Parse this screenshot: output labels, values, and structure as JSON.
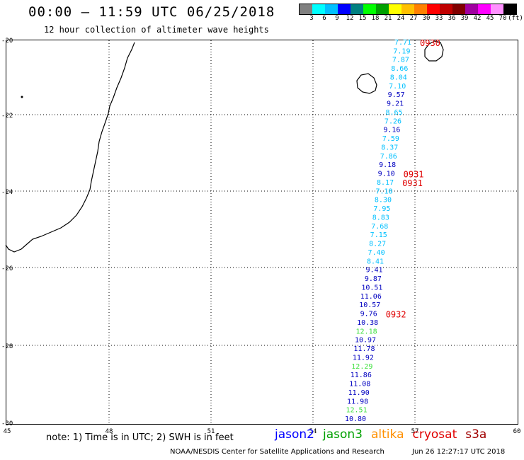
{
  "header": {
    "title": "00:00 — 11:59 UTC 06/25/2018",
    "subtitle": "12 hour collection of altimeter wave heights"
  },
  "legend": {
    "unit": "(ft)",
    "ticks": [
      "3",
      "6",
      "9",
      "12",
      "15",
      "18",
      "21",
      "24",
      "27",
      "30",
      "33",
      "36",
      "39",
      "42",
      "45",
      "70"
    ],
    "colors": [
      "#808080",
      "#00ffff",
      "#00c0ff",
      "#0000ff",
      "#008080",
      "#00ff00",
      "#00a000",
      "#ffff00",
      "#ffc000",
      "#ff8000",
      "#ff0000",
      "#c00000",
      "#800000",
      "#a000a0",
      "#ff00ff",
      "#ff90ff",
      "#000000"
    ]
  },
  "axes": {
    "lon_labels": [
      "45",
      "48",
      "51",
      "54",
      "57",
      "60"
    ],
    "lat_labels": [
      "-20",
      "-22",
      "-24",
      "-26",
      "-28",
      "-30"
    ]
  },
  "track": {
    "points": [
      {
        "v": "7.71",
        "c": "#00c0ff"
      },
      {
        "v": "7.19",
        "c": "#00c0ff"
      },
      {
        "v": "7.87",
        "c": "#00c0ff"
      },
      {
        "v": "8.66",
        "c": "#00c0ff"
      },
      {
        "v": "8.04",
        "c": "#00c0ff"
      },
      {
        "v": "7.10",
        "c": "#00c0ff"
      },
      {
        "v": "9.57",
        "c": "#0000c0"
      },
      {
        "v": "9.21",
        "c": "#0000c0"
      },
      {
        "v": "8.65",
        "c": "#00c0ff"
      },
      {
        "v": "7.26",
        "c": "#00c0ff"
      },
      {
        "v": "9.16",
        "c": "#0000c0"
      },
      {
        "v": "7.59",
        "c": "#00c0ff"
      },
      {
        "v": "8.37",
        "c": "#00c0ff"
      },
      {
        "v": "7.86",
        "c": "#00c0ff"
      },
      {
        "v": "9.18",
        "c": "#0000c0"
      },
      {
        "v": "9.10",
        "c": "#0000c0"
      },
      {
        "v": "8.17",
        "c": "#00c0ff"
      },
      {
        "v": "7.18",
        "c": "#00c0ff"
      },
      {
        "v": "8.30",
        "c": "#00c0ff"
      },
      {
        "v": "7.95",
        "c": "#00c0ff"
      },
      {
        "v": "8.83",
        "c": "#00c0ff"
      },
      {
        "v": "7.68",
        "c": "#00c0ff"
      },
      {
        "v": "7.15",
        "c": "#00c0ff"
      },
      {
        "v": "8.27",
        "c": "#00c0ff"
      },
      {
        "v": "7.40",
        "c": "#00c0ff"
      },
      {
        "v": "8.41",
        "c": "#00c0ff"
      },
      {
        "v": "9.41",
        "c": "#0000c0"
      },
      {
        "v": "9.87",
        "c": "#0000c0"
      },
      {
        "v": "10.51",
        "c": "#0000c0"
      },
      {
        "v": "11.06",
        "c": "#0000c0"
      },
      {
        "v": "10.57",
        "c": "#0000c0"
      },
      {
        "v": "9.76",
        "c": "#0000c0"
      },
      {
        "v": "10.38",
        "c": "#0000c0"
      },
      {
        "v": "12.18",
        "c": "#40e040"
      },
      {
        "v": "10.97",
        "c": "#0000c0"
      },
      {
        "v": "11.78",
        "c": "#0000c0"
      },
      {
        "v": "11.92",
        "c": "#0000c0"
      },
      {
        "v": "12.29",
        "c": "#40e040"
      },
      {
        "v": "11.86",
        "c": "#0000c0"
      },
      {
        "v": "11.08",
        "c": "#0000c0"
      },
      {
        "v": "11.90",
        "c": "#0000c0"
      },
      {
        "v": "11.98",
        "c": "#0000c0"
      },
      {
        "v": "12.51",
        "c": "#40e040"
      },
      {
        "v": "10.80",
        "c": "#0000c0"
      }
    ]
  },
  "time_labels": [
    {
      "text": "0930",
      "after_index": 0
    },
    {
      "text": "0931",
      "after_index": 15
    },
    {
      "text": "0931",
      "after_index": 16
    },
    {
      "text": "0932",
      "after_index": 31
    }
  ],
  "time_color": "#e00000",
  "footer": {
    "note": "note: 1) Time is in UTC; 2) SWH is in feet",
    "satellites": [
      {
        "name": "jason2",
        "color": "#0000ff"
      },
      {
        "name": "jason3",
        "color": "#00a000"
      },
      {
        "name": "altika",
        "color": "#ff9000"
      },
      {
        "name": "cryosat",
        "color": "#e00000"
      },
      {
        "name": "s3a",
        "color": "#a00000"
      }
    ],
    "credit": "NOAA/NESDIS Center for Satellite Applications and Research",
    "timestamp": "Jun 26 12:27:17 UTC 2018"
  }
}
